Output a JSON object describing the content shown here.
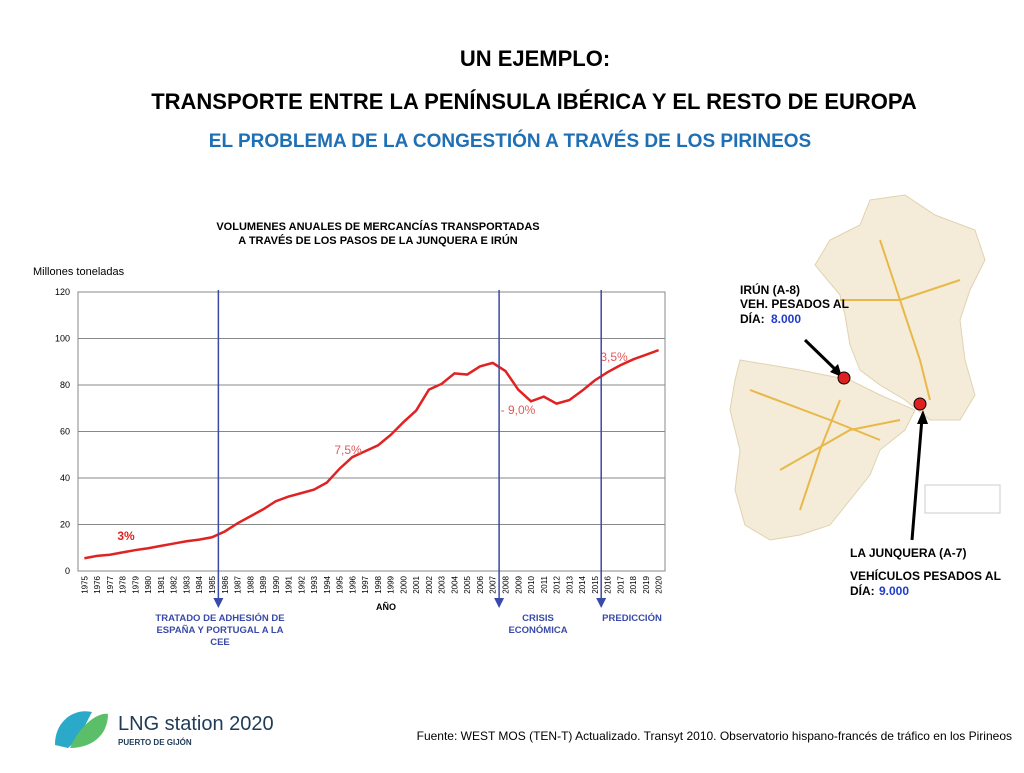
{
  "header": {
    "title": "UN EJEMPLO:",
    "subtitle": "TRANSPORTE ENTRE LA PENÍNSULA IBÉRICA Y EL RESTO DE EUROPA",
    "tagline": "EL PROBLEMA DE LA CONGESTIÓN A TRAVÉS DE LOS PIRINEOS"
  },
  "chart_data": {
    "type": "line",
    "title_lines": [
      "VOLUMENES ANUALES DE MERCANCÍAS TRANSPORTADAS",
      "A TRAVÉS DE LOS PASOS DE LA JUNQUERA E IRÚN"
    ],
    "y_label": "Millones toneladas",
    "x_label": "AÑO",
    "categories": [
      "1975",
      "1976",
      "1977",
      "1978",
      "1979",
      "1980",
      "1981",
      "1982",
      "1983",
      "1984",
      "1985",
      "1986",
      "1987",
      "1988",
      "1989",
      "1990",
      "1991",
      "1992",
      "1993",
      "1994",
      "1995",
      "1996",
      "1997",
      "1998",
      "1999",
      "2000",
      "2001",
      "2002",
      "2003",
      "2004",
      "2005",
      "2006",
      "2007",
      "2008",
      "2009",
      "2010",
      "2011",
      "2012",
      "2013",
      "2014",
      "2015",
      "2016",
      "2017",
      "2018",
      "2019",
      "2020"
    ],
    "values": [
      5.5,
      6.5,
      7,
      8,
      9,
      9.8,
      10.8,
      11.8,
      12.8,
      13.5,
      14.5,
      17,
      20.5,
      23.5,
      26.5,
      30,
      32,
      33.5,
      35,
      38,
      44,
      49,
      51.5,
      54,
      58.5,
      64,
      69,
      78,
      80.5,
      85,
      84.5,
      88,
      89.5,
      86,
      78,
      73,
      75,
      72,
      73.5,
      77.5,
      82,
      85.5,
      88.5,
      91,
      93,
      95
    ],
    "color": "#e02222",
    "ylim": [
      0,
      120
    ],
    "yticks": [
      0,
      20,
      40,
      60,
      80,
      100,
      120
    ],
    "grid": true,
    "annotations": [
      {
        "text": "3%",
        "color": "#e02222"
      },
      {
        "text": "7,5%",
        "color": "#e05a5a"
      },
      {
        "text": "- 9,0%",
        "color": "#e05a5a"
      },
      {
        "text": "3,5%",
        "color": "#e05a5a"
      }
    ],
    "events": [
      {
        "lines": [
          "TRATADO DE ADHESIÓN DE",
          "ESPAÑA Y PORTUGAL A LA",
          "CEE"
        ]
      },
      {
        "lines": [
          "CRISIS",
          "ECONÓMICA"
        ]
      },
      {
        "lines": [
          "PREDICCIÓN"
        ]
      }
    ]
  },
  "map": {
    "irun": {
      "lines": [
        "IRÚN (A-8)",
        "VEH. PESADOS AL"
      ],
      "prefix": "DÍA:",
      "value": "8.000"
    },
    "junquera": {
      "lines": [
        "LA JUNQUERA (A-7)",
        "",
        "VEHÍCULOS PESADOS AL"
      ],
      "prefix": "DÍA:",
      "value": "9.000"
    }
  },
  "footer": {
    "logo": "LNG station 2020",
    "logo_sub": "PUERTO DE GIJÓN",
    "source": "Fuente: WEST MOS (TEN-T) Actualizado. Transyt 2010. Observatorio hispano-francés de tráfico en los Pirineos"
  }
}
